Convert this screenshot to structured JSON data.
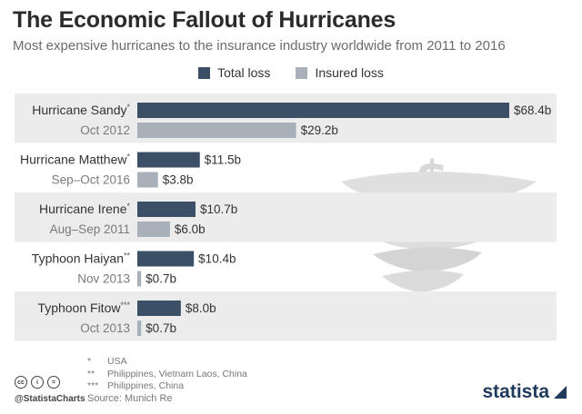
{
  "header": {
    "title": "The Economic Fallout of Hurricanes",
    "subtitle": "Most expensive hurricanes to the insurance industry worldwide from 2011 to 2016"
  },
  "legend": {
    "total": "Total loss",
    "insured": "Insured loss"
  },
  "colors": {
    "total": "#3b4f66",
    "insured": "#a8b0b9",
    "band": "#ececec"
  },
  "chart_data": {
    "type": "bar",
    "orientation": "horizontal",
    "xlim": [
      0,
      68.4
    ],
    "categories": [
      {
        "name": "Hurricane Sandy",
        "mark": "*",
        "date": "Oct 2012"
      },
      {
        "name": "Hurricane Matthew",
        "mark": "*",
        "date": "Sep–Oct 2016"
      },
      {
        "name": "Hurricane Irene",
        "mark": "*",
        "date": "Aug–Sep 2011"
      },
      {
        "name": "Typhoon Haiyan",
        "mark": "**",
        "date": "Nov 2013"
      },
      {
        "name": "Typhoon Fitow",
        "mark": "***",
        "date": "Oct 2013"
      }
    ],
    "series": [
      {
        "name": "Total loss",
        "values": [
          68.4,
          11.5,
          10.7,
          10.4,
          8.0
        ],
        "labels": [
          "$68.4b",
          "$11.5b",
          "$10.7b",
          "$10.4b",
          "$8.0b"
        ]
      },
      {
        "name": "Insured loss",
        "values": [
          29.2,
          3.8,
          6.0,
          0.7,
          0.7
        ],
        "labels": [
          "$29.2b",
          "$3.8b",
          "$6.0b",
          "$0.7b",
          "$0.7b"
        ]
      }
    ]
  },
  "footnotes": [
    {
      "mark": "*",
      "text": "USA"
    },
    {
      "mark": "**",
      "text": "Philippines, Vietnam Laos, China"
    },
    {
      "mark": "***",
      "text": "Philippines, China"
    }
  ],
  "source": "Source: Munich Re",
  "handle": "@StatistaCharts",
  "cc_icons": [
    "cc",
    "i",
    "="
  ],
  "brand": "statista"
}
